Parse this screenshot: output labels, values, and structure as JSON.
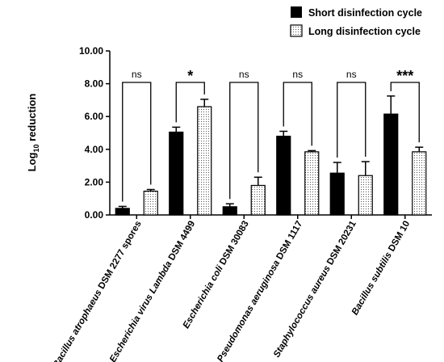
{
  "chart_data": {
    "type": "bar",
    "ylabel_main": "Log",
    "ylabel_sub": "10",
    "ylabel_rest": " reduction",
    "ylim": [
      0,
      10
    ],
    "yticks": [
      "0.00",
      "2.00",
      "4.00",
      "6.00",
      "8.00",
      "10.00"
    ],
    "categories": [
      {
        "italic": "Bacillus atrophaeus",
        "plain": " DSM 2277 spores"
      },
      {
        "italic": "Escherichia virus Lambda",
        "plain": " DSM 4499"
      },
      {
        "italic": "Escherichia coli",
        "plain": " DSM 30083"
      },
      {
        "italic": "Pseudomonas aeruginosa",
        "plain": " DSM 1117"
      },
      {
        "italic": "Staphylococcus aureus",
        "plain": " DSM 20231"
      },
      {
        "italic": "Bacillus subtilis",
        "plain": " DSM 10"
      }
    ],
    "series": [
      {
        "name": "Short disinfection cycle",
        "fill": "#000000",
        "pattern": "solid",
        "values": [
          0.4,
          5.05,
          0.5,
          4.8,
          2.55,
          6.15
        ],
        "errors": [
          0.12,
          0.3,
          0.18,
          0.3,
          0.65,
          1.1
        ]
      },
      {
        "name": "Long disinfection cycle",
        "fill": "#ffffff",
        "pattern": "dotted",
        "values": [
          1.45,
          6.6,
          1.8,
          3.85,
          2.4,
          3.85
        ],
        "errors": [
          0.1,
          0.45,
          0.5,
          0.07,
          0.85,
          0.28
        ]
      }
    ],
    "significance": [
      "ns",
      "*",
      "ns",
      "ns",
      "ns",
      "***"
    ],
    "grid": false,
    "legend_position": "top-right"
  }
}
